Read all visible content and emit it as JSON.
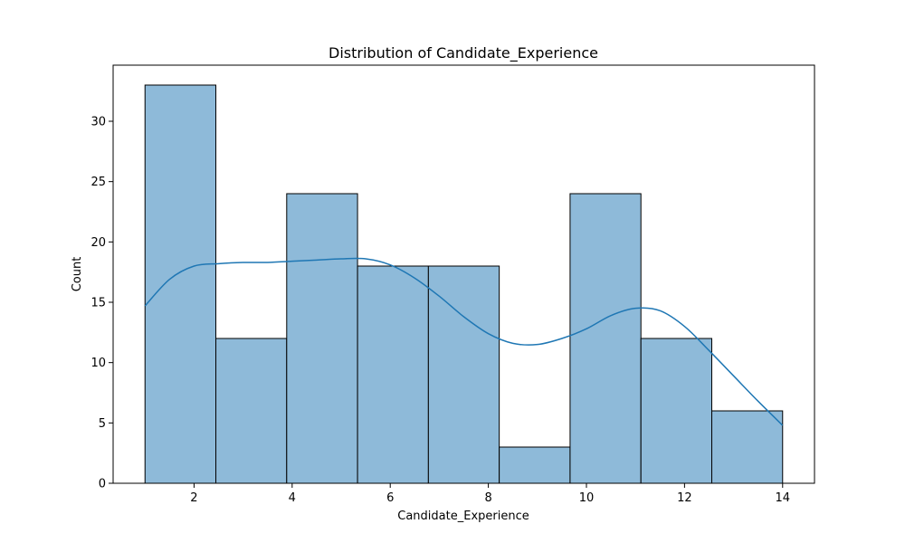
{
  "chart_data": {
    "type": "bar",
    "title": "Distribution of Candidate_Experience",
    "xlabel": "Candidate_Experience",
    "ylabel": "Count",
    "xlim": [
      0.35,
      14.65
    ],
    "ylim": [
      0,
      34.65
    ],
    "bin_edges": [
      1.0,
      2.4444,
      3.8889,
      5.3333,
      6.7778,
      8.2222,
      9.6667,
      11.1111,
      12.5556,
      14.0
    ],
    "values": [
      33,
      12,
      24,
      18,
      18,
      3,
      24,
      12,
      6
    ],
    "x_ticks": [
      2,
      4,
      6,
      8,
      10,
      12,
      14
    ],
    "y_ticks": [
      0,
      5,
      10,
      15,
      20,
      25,
      30
    ],
    "grid": false,
    "bar_color": "#8ebad9",
    "bar_edge_color": "#000000",
    "kde": {
      "name": "",
      "color": "#1f77b4",
      "x": [
        1.0,
        1.5,
        2.0,
        2.5,
        3.0,
        3.5,
        4.0,
        4.5,
        5.0,
        5.5,
        6.0,
        6.5,
        7.0,
        7.5,
        8.0,
        8.5,
        9.0,
        9.5,
        10.0,
        10.5,
        11.0,
        11.5,
        12.0,
        12.5,
        13.0,
        13.5,
        14.0
      ],
      "y": [
        14.7,
        16.9,
        18.0,
        18.2,
        18.3,
        18.3,
        18.4,
        18.5,
        18.6,
        18.6,
        18.1,
        17.0,
        15.5,
        13.8,
        12.4,
        11.6,
        11.5,
        12.0,
        12.8,
        13.9,
        14.5,
        14.3,
        13.0,
        11.0,
        8.9,
        6.8,
        4.8
      ]
    }
  }
}
